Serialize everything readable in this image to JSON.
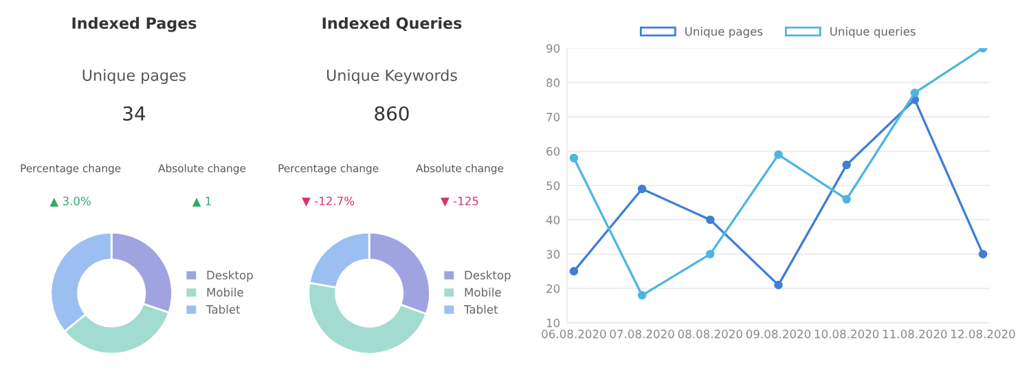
{
  "chart_data": [
    {
      "type": "other",
      "title": "Indexed Pages",
      "annotations": [
        "Unique pages",
        "34",
        "Percentage change",
        "Absolute change",
        "▲ 3.0%",
        "▲ 1"
      ],
      "colors": [
        "#555555",
        "#333333",
        "#555555",
        "#555555",
        "#2eaa6a",
        "#2eaa6a"
      ]
    },
    {
      "type": "other",
      "title": "Indexed Queries",
      "annotations": [
        "Unique Keywords",
        "860",
        "Percentage change",
        "Absolute change",
        "▼ -12.7%",
        "▼ -125"
      ],
      "colors": [
        "#555555",
        "#333333",
        "#555555",
        "#555555",
        "#d6336c",
        "#d6336c"
      ]
    },
    {
      "type": "line",
      "categories": [
        "06.08.2020",
        "07.08.2020",
        "08.08.2020",
        "09.08.2020",
        "10.08.2020",
        "11.08.2020",
        "12.08.2020"
      ],
      "series": [
        {
          "name": "Unique pages",
          "color": "#3f7fd6",
          "values": [
            25,
            49,
            40,
            21,
            56,
            75,
            30
          ]
        },
        {
          "name": "Unique queries",
          "color": "#4db6e0",
          "values": [
            58,
            18,
            30,
            59,
            46,
            77,
            90
          ]
        }
      ],
      "ylim": [
        10,
        90
      ],
      "yticks": [
        10,
        20,
        30,
        40,
        50,
        60,
        70,
        80,
        90
      ],
      "grid": "y",
      "legend": "top",
      "marker": "circle",
      "line_style": "solid"
    },
    {
      "type": "donut",
      "categories": [
        "Desktop",
        "Mobile",
        "Tablet"
      ],
      "values": [
        30.2,
        33.9,
        35.9
      ],
      "colors": [
        "#9fa3e0",
        "#a2dcd0",
        "#9cbff2"
      ],
      "legend": "right"
    },
    {
      "type": "donut",
      "categories": [
        "Desktop",
        "Mobile",
        "Tablet"
      ],
      "values": [
        30.6,
        47.1,
        22.3
      ],
      "colors": [
        "#9fa3e0",
        "#a2dcd0",
        "#9cbff2"
      ],
      "legend": "right"
    }
  ]
}
